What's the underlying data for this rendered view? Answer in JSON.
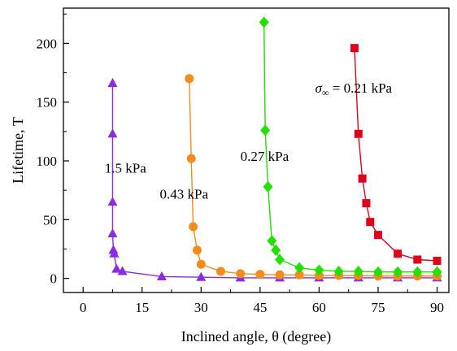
{
  "chart_data": {
    "type": "line",
    "xlabel": "Inclined angle, θ (degree)",
    "ylabel": "Lifetime, T",
    "xlim": [
      -5,
      93
    ],
    "ylim": [
      -12,
      230
    ],
    "x_ticks": [
      0,
      15,
      30,
      45,
      60,
      75,
      90
    ],
    "y_ticks": [
      0,
      50,
      100,
      150,
      200
    ],
    "grid": false,
    "series": [
      {
        "name": "1.5 kPa",
        "color": "#8b2be2",
        "marker": "triangle",
        "label_text": "1.5 kPa",
        "points": [
          [
            7.5,
            166
          ],
          [
            7.5,
            123
          ],
          [
            7.5,
            65
          ],
          [
            7.5,
            38
          ],
          [
            7.7,
            24
          ],
          [
            7.9,
            21
          ],
          [
            8.5,
            8
          ],
          [
            10,
            6
          ],
          [
            20,
            1.5
          ],
          [
            30,
            1
          ],
          [
            40,
            0.5
          ],
          [
            50,
            0.5
          ],
          [
            60,
            0.5
          ],
          [
            70,
            0.5
          ],
          [
            80,
            0.5
          ],
          [
            90,
            0.5
          ]
        ]
      },
      {
        "name": "0.43 kPa",
        "color": "#f28c1c",
        "marker": "circle",
        "label_text": "0.43 kPa",
        "points": [
          [
            27,
            170
          ],
          [
            27.5,
            102
          ],
          [
            28,
            44
          ],
          [
            29,
            24
          ],
          [
            30,
            12
          ],
          [
            35,
            6
          ],
          [
            40,
            4
          ],
          [
            45,
            3.5
          ],
          [
            50,
            3
          ],
          [
            55,
            3
          ],
          [
            60,
            2.5
          ],
          [
            65,
            2.5
          ],
          [
            70,
            2.5
          ],
          [
            75,
            2
          ],
          [
            80,
            2
          ],
          [
            85,
            2
          ],
          [
            90,
            2
          ]
        ]
      },
      {
        "name": "0.27 kPa",
        "color": "#22e000",
        "marker": "diamond",
        "label_text": "0.27 kPa",
        "points": [
          [
            46,
            218
          ],
          [
            46.3,
            126
          ],
          [
            47,
            78
          ],
          [
            48,
            32
          ],
          [
            49,
            24
          ],
          [
            50,
            16
          ],
          [
            55,
            9
          ],
          [
            60,
            7
          ],
          [
            65,
            6
          ],
          [
            70,
            6
          ],
          [
            75,
            5.5
          ],
          [
            80,
            5.5
          ],
          [
            85,
            5.5
          ],
          [
            90,
            5.5
          ]
        ]
      },
      {
        "name": "σ∞ = 0.21 kPa",
        "color": "#e0001b",
        "marker": "square",
        "label_prefix": "σ",
        "label_sub": "∞",
        "label_rest": " = 0.21 kPa",
        "points": [
          [
            69,
            196
          ],
          [
            70,
            123
          ],
          [
            71,
            85
          ],
          [
            72,
            64
          ],
          [
            73,
            48
          ],
          [
            75,
            37
          ],
          [
            80,
            21
          ],
          [
            85,
            16
          ],
          [
            90,
            15
          ]
        ]
      }
    ]
  }
}
